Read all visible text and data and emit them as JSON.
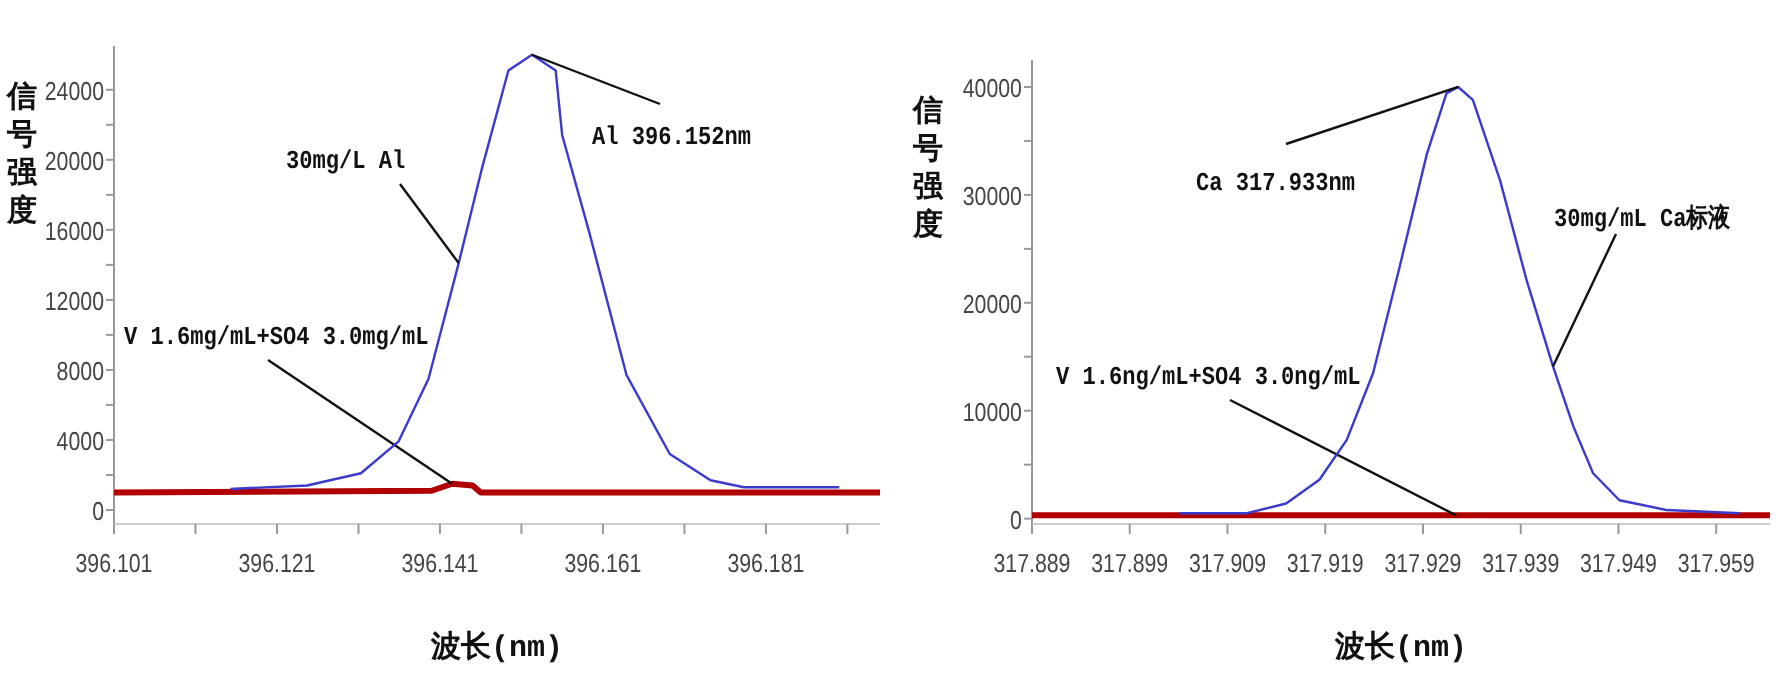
{
  "chart_data": [
    {
      "type": "line",
      "xlabel": "波长(nm)",
      "ylabel": "信号强度",
      "xlim": [
        396.101,
        396.195
      ],
      "ylim": [
        -800,
        26500
      ],
      "xticks": [
        396.101,
        {
          "value": 396.111,
          "label": null
        },
        396.121,
        {
          "value": 396.131,
          "label": null
        },
        396.141,
        {
          "value": 396.151,
          "label": null
        },
        396.161,
        {
          "value": 396.171,
          "label": null
        },
        396.181,
        {
          "value": 396.191,
          "label": null
        }
      ],
      "yticks": [
        0,
        {
          "value": 2000,
          "label": null
        },
        4000,
        {
          "value": 6000,
          "label": null
        },
        8000,
        {
          "value": 10000,
          "label": null
        },
        12000,
        {
          "value": 14000,
          "label": null
        },
        16000,
        {
          "value": 18000,
          "label": null
        },
        20000,
        {
          "value": 22000,
          "label": null
        },
        24000
      ],
      "series": [
        {
          "name": "30mg/L Al",
          "color": "#3a3acc",
          "x": [
            396.1153,
            396.1247,
            396.1313,
            396.1359,
            396.1396,
            396.1433,
            396.1462,
            396.1494,
            396.1523,
            396.1552,
            396.156,
            396.1593,
            396.1639,
            396.1692,
            396.1742,
            396.1783,
            396.19
          ],
          "values": [
            1200,
            1400,
            2100,
            3900,
            7500,
            14100,
            19600,
            25100,
            26000,
            25100,
            21400,
            15900,
            7700,
            3200,
            1700,
            1300,
            1300
          ]
        },
        {
          "name": "V 1.6mg/mL+SO4 3.0mg/mL",
          "color": "#b00000",
          "x": [
            396.101,
            396.14,
            396.1425,
            396.145,
            396.146,
            396.195
          ],
          "values": [
            1000,
            1100,
            1500,
            1400,
            1000,
            1000
          ]
        }
      ],
      "annotations": [
        {
          "text": "Al 396.152nm",
          "x": 396.1523,
          "y": 26000
        }
      ],
      "marker": "none",
      "line_style": "solid",
      "grid": false,
      "legend": false
    },
    {
      "type": "line",
      "xlabel": "波长(nm)",
      "ylabel": "信号强度",
      "xlim": [
        317.889,
        317.9645
      ],
      "ylim": [
        -500,
        42500
      ],
      "xticks": [
        317.889,
        317.899,
        317.909,
        317.919,
        317.929,
        317.939,
        317.949,
        317.959
      ],
      "yticks": [
        0,
        {
          "value": 5000,
          "label": null
        },
        10000,
        {
          "value": 15000,
          "label": null
        },
        20000,
        {
          "value": 25000,
          "label": null
        },
        30000,
        {
          "value": 35000,
          "label": null
        },
        40000
      ],
      "series": [
        {
          "name": "30mg/mL Ca标液",
          "color": "#3a3acc",
          "x": [
            317.9041,
            317.911,
            317.915,
            317.9184,
            317.9212,
            317.9239,
            317.9266,
            317.9294,
            317.9314,
            317.9326,
            317.9341,
            317.9369,
            317.9396,
            317.9423,
            317.9444,
            317.9464,
            317.9491,
            317.9539,
            317.9614
          ],
          "values": [
            500,
            500,
            1400,
            3600,
            7300,
            13500,
            23300,
            33800,
            39400,
            40000,
            38800,
            31300,
            22100,
            14100,
            8500,
            4200,
            1700,
            800,
            500
          ]
        },
        {
          "name": "V 1.6ng/mL+SO4 3.0ng/mL",
          "color": "#b00000",
          "x": [
            317.889,
            317.9324,
            317.9645
          ],
          "values": [
            300,
            300,
            300
          ]
        }
      ],
      "annotations": [
        {
          "text": "Ca 317.933nm",
          "x": 317.9326,
          "y": 40000
        }
      ],
      "marker": "none",
      "line_style": "solid",
      "grid": false,
      "legend": false
    }
  ]
}
